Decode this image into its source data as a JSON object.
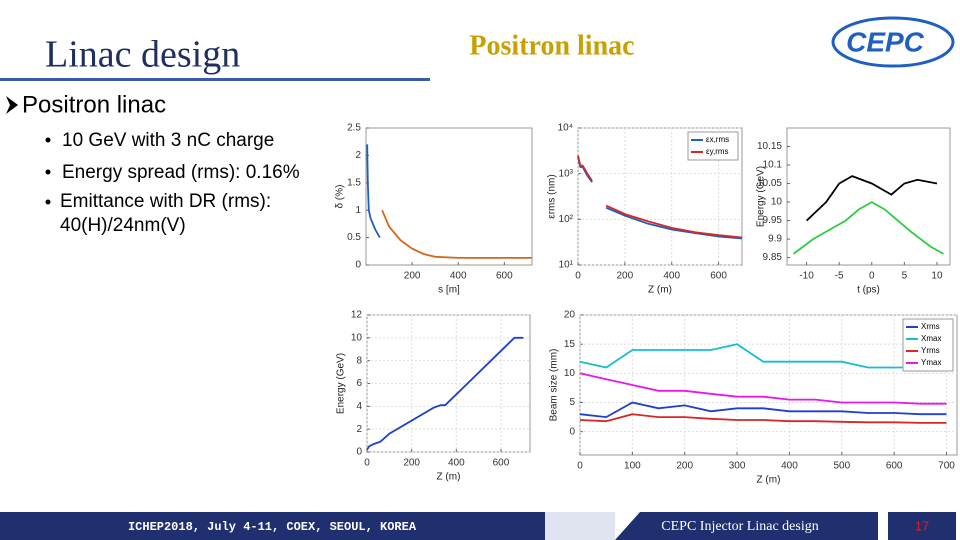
{
  "header": {
    "title": "Linac design",
    "subtitle": "Positron linac",
    "logo": "CEPC"
  },
  "section": {
    "heading": "Positron linac",
    "bullets": [
      "10 GeV with 3 nC charge",
      "Energy spread (rms): 0.16%",
      "Emittance with DR (rms): 40(H)/24nm(V)"
    ]
  },
  "footer": {
    "event": "ICHEP2018, July 4-11, COEX, SEOUL, KOREA",
    "talk": "CEPC Injector Linac design",
    "page": "17"
  },
  "chart_data": [
    {
      "type": "line",
      "xlabel": "s [m]",
      "ylabel": "δ (%)",
      "xlim": [
        0,
        720
      ],
      "ylim": [
        0,
        2.5
      ],
      "xticks": [
        200,
        400,
        600
      ],
      "yticks": [
        0,
        0.5,
        1,
        1.5,
        2,
        2.5
      ],
      "grid": false,
      "series": [
        {
          "color": "#1f5fbf",
          "x": [
            5,
            8,
            12,
            20,
            30,
            40,
            60
          ],
          "values": [
            2.2,
            1.5,
            1.0,
            0.85,
            0.75,
            0.65,
            0.5
          ]
        },
        {
          "color": "#d2691e",
          "x": [
            70,
            100,
            150,
            200,
            250,
            300,
            400,
            500,
            600,
            720
          ],
          "values": [
            1.0,
            0.7,
            0.45,
            0.3,
            0.2,
            0.15,
            0.13,
            0.13,
            0.13,
            0.13
          ]
        }
      ]
    },
    {
      "type": "line",
      "xlabel": "Z (m)",
      "ylabel": "εrms (nm)",
      "xlim": [
        0,
        700
      ],
      "ylim": [
        10,
        10000
      ],
      "log_y": true,
      "xticks": [
        0,
        200,
        400,
        600
      ],
      "yticks": [
        {
          "value": 10,
          "label": "10¹"
        },
        {
          "value": 100,
          "label": "10²"
        },
        {
          "value": 1000,
          "label": "10³"
        },
        {
          "value": 10000,
          "label": "10⁴"
        }
      ],
      "grid": true,
      "legend": "upper right",
      "series": [
        {
          "name": "εx,rms",
          "color": "#1f5fbf",
          "x": [
            0,
            10,
            20,
            40,
            60,
            80,
            120,
            200,
            300,
            400,
            500,
            600,
            700
          ],
          "values": [
            2300,
            1400,
            1400,
            900,
            650,
            null,
            180,
            120,
            80,
            60,
            50,
            42,
            38
          ]
        },
        {
          "name": "εy,rms",
          "color": "#d62728",
          "x": [
            0,
            10,
            20,
            40,
            60,
            80,
            120,
            200,
            300,
            400,
            500,
            600,
            700
          ],
          "values": [
            2500,
            1500,
            1500,
            1000,
            700,
            null,
            200,
            130,
            90,
            65,
            52,
            45,
            40
          ]
        }
      ]
    },
    {
      "type": "line",
      "xlabel": "t (ps)",
      "ylabel": "Energy (GeV)",
      "xlim": [
        -13,
        12
      ],
      "ylim": [
        9.83,
        10.2
      ],
      "xticks": [
        -10,
        -5,
        0,
        5,
        10
      ],
      "yticks": [
        9.85,
        9.9,
        9.95,
        10,
        10.05,
        10.1,
        10.15
      ],
      "grid": false,
      "series": [
        {
          "color": "#000000",
          "x": [
            -10,
            -7,
            -5,
            -3,
            0,
            3,
            5,
            7,
            10
          ],
          "values": [
            9.95,
            10.0,
            10.05,
            10.07,
            10.05,
            10.02,
            10.05,
            10.06,
            10.05
          ]
        },
        {
          "color": "#2ecc40",
          "x": [
            -12,
            -9,
            -6,
            -4,
            -2,
            0,
            2,
            4,
            6,
            9,
            11
          ],
          "values": [
            9.86,
            9.9,
            9.93,
            9.95,
            9.98,
            10.0,
            9.98,
            9.95,
            9.92,
            9.88,
            9.86
          ]
        }
      ]
    },
    {
      "type": "line",
      "xlabel": "Z (m)",
      "ylabel": "Energy (GeV)",
      "xlim": [
        0,
        730
      ],
      "ylim": [
        0,
        12
      ],
      "xticks": [
        0,
        200,
        400,
        600
      ],
      "yticks": [
        0,
        2,
        4,
        6,
        8,
        10,
        12
      ],
      "grid": true,
      "series": [
        {
          "color": "#1f3fcf",
          "x": [
            0,
            10,
            30,
            60,
            100,
            300,
            330,
            350,
            660,
            680,
            700
          ],
          "values": [
            0.2,
            0.5,
            0.7,
            0.9,
            1.6,
            3.9,
            4.1,
            4.1,
            10,
            10,
            10
          ]
        }
      ]
    },
    {
      "type": "line",
      "xlabel": "Z (m)",
      "ylabel": "Beam size (mm)",
      "xlim": [
        0,
        720
      ],
      "ylim": [
        -4,
        20
      ],
      "xticks": [
        0,
        100,
        200,
        300,
        400,
        500,
        600,
        700
      ],
      "yticks": [
        0,
        5,
        10,
        15,
        20
      ],
      "grid": true,
      "legend": "upper right",
      "series": [
        {
          "name": "Xrms",
          "color": "#1f3fcf",
          "x": [
            0,
            50,
            100,
            150,
            200,
            250,
            300,
            350,
            400,
            450,
            500,
            550,
            600,
            650,
            700
          ],
          "values": [
            3,
            2.5,
            5,
            4,
            4.5,
            3.5,
            4,
            4,
            3.5,
            3.5,
            3.5,
            3.2,
            3.2,
            3,
            3
          ]
        },
        {
          "name": "Xmax",
          "color": "#17becf",
          "x": [
            0,
            50,
            100,
            150,
            200,
            250,
            300,
            350,
            400,
            450,
            500,
            550,
            600,
            650,
            700
          ],
          "values": [
            12,
            11,
            14,
            14,
            14,
            14,
            15,
            12,
            12,
            12,
            12,
            11,
            11,
            11,
            11
          ]
        },
        {
          "name": "Yrms",
          "color": "#d62728",
          "x": [
            0,
            50,
            100,
            150,
            200,
            250,
            300,
            350,
            400,
            450,
            500,
            550,
            600,
            650,
            700
          ],
          "values": [
            2,
            1.8,
            3,
            2.5,
            2.5,
            2.2,
            2,
            2,
            1.8,
            1.8,
            1.7,
            1.6,
            1.6,
            1.5,
            1.5
          ]
        },
        {
          "name": "Ymax",
          "color": "#e619e6",
          "x": [
            0,
            50,
            100,
            150,
            200,
            250,
            300,
            350,
            400,
            450,
            500,
            550,
            600,
            650,
            700
          ],
          "values": [
            10,
            9,
            8,
            7,
            7,
            6.5,
            6,
            6,
            5.5,
            5.5,
            5,
            5,
            5,
            4.8,
            4.8
          ]
        }
      ]
    }
  ]
}
